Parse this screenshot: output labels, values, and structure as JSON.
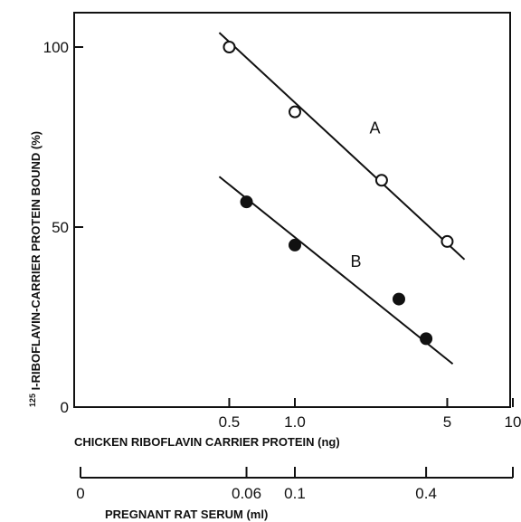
{
  "chart_data": {
    "type": "scatter",
    "xscale": "log",
    "xlim": [
      0.1,
      10
    ],
    "ylim": [
      0,
      100
    ],
    "grid": false,
    "ylabel_sup": "125",
    "ylabel_rest": "I-RIBOFLAVIN-CARRIER PROTEIN BOUND (%)",
    "xlabel": "CHICKEN RIBOFLAVIN CARRIER PROTEIN (ng)",
    "x_ticks": [
      0.5,
      1.0,
      5,
      10
    ],
    "x_tick_labels": [
      "0.5",
      "1.0",
      "5",
      "10"
    ],
    "y_ticks": [
      0,
      50,
      100
    ],
    "y_tick_labels": [
      "0",
      "50",
      "100"
    ],
    "secondary_axis": {
      "label": "PREGNANT RAT SERUM (ml)",
      "ticks": [
        {
          "label": "0",
          "at_primary_x": 0.1
        },
        {
          "label": "0.06",
          "at_primary_x": 0.6
        },
        {
          "label": "0.1",
          "at_primary_x": 1.0
        },
        {
          "label": "0.4",
          "at_primary_x": 4.0
        }
      ],
      "end_at_primary_x": 10
    },
    "series": [
      {
        "name": "A",
        "marker": "open-circle",
        "points": [
          {
            "x": 0.5,
            "y": 100
          },
          {
            "x": 1.0,
            "y": 82
          },
          {
            "x": 2.5,
            "y": 63
          },
          {
            "x": 5.0,
            "y": 46
          }
        ],
        "fit": [
          {
            "x": 0.45,
            "y": 104
          },
          {
            "x": 6.0,
            "y": 41
          }
        ]
      },
      {
        "name": "B",
        "marker": "filled-circle",
        "points": [
          {
            "x": 0.6,
            "y": 57
          },
          {
            "x": 1.0,
            "y": 45
          },
          {
            "x": 3.0,
            "y": 30
          },
          {
            "x": 4.0,
            "y": 19
          }
        ],
        "fit": [
          {
            "x": 0.45,
            "y": 64
          },
          {
            "x": 5.3,
            "y": 12
          }
        ]
      }
    ]
  }
}
